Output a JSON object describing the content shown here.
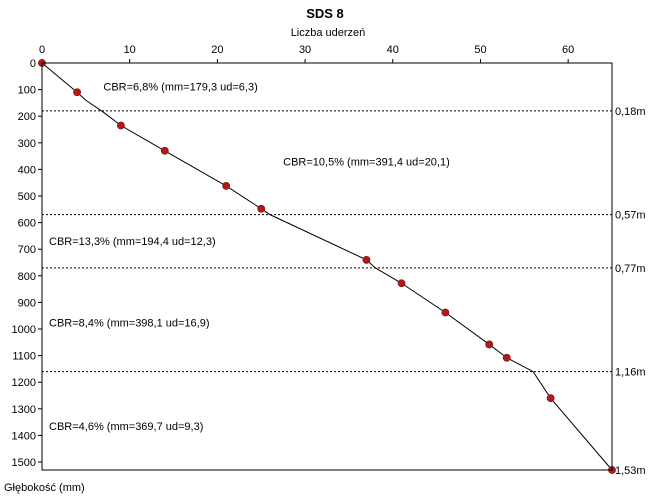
{
  "chart_data": {
    "type": "line",
    "title": "SDS 8",
    "xlabel": "Liczba uderzeń",
    "ylabel": "Głębokość (mm)",
    "x_axis_position": "top",
    "y_axis_inverted": true,
    "xlim": [
      0,
      65
    ],
    "ylim": [
      0,
      1530
    ],
    "x_ticks": [
      0,
      10,
      20,
      30,
      40,
      50,
      60
    ],
    "y_ticks": [
      0,
      100,
      200,
      300,
      400,
      500,
      600,
      700,
      800,
      900,
      1000,
      1100,
      1200,
      1300,
      1400,
      1500
    ],
    "grid": false,
    "series": [
      {
        "color": "#b11a1a",
        "line_color": "#000000",
        "points": [
          {
            "x": 0,
            "y": 0
          },
          {
            "x": 4,
            "y": 110
          },
          {
            "x": 9,
            "y": 235
          },
          {
            "x": 14,
            "y": 330
          },
          {
            "x": 21,
            "y": 462
          },
          {
            "x": 25,
            "y": 548
          },
          {
            "x": 37,
            "y": 740
          },
          {
            "x": 41,
            "y": 828
          },
          {
            "x": 46,
            "y": 938
          },
          {
            "x": 51,
            "y": 1058
          },
          {
            "x": 53,
            "y": 1108
          },
          {
            "x": 58,
            "y": 1260
          },
          {
            "x": 65,
            "y": 1530
          }
        ],
        "line_path": [
          {
            "x": 0,
            "y": 0
          },
          {
            "x": 4,
            "y": 110
          },
          {
            "x": 5,
            "y": 140
          },
          {
            "x": 7,
            "y": 185
          },
          {
            "x": 9,
            "y": 235
          },
          {
            "x": 14,
            "y": 330
          },
          {
            "x": 21,
            "y": 462
          },
          {
            "x": 25,
            "y": 548
          },
          {
            "x": 26,
            "y": 570
          },
          {
            "x": 37,
            "y": 740
          },
          {
            "x": 38,
            "y": 770
          },
          {
            "x": 41,
            "y": 828
          },
          {
            "x": 46,
            "y": 938
          },
          {
            "x": 51,
            "y": 1058
          },
          {
            "x": 53,
            "y": 1108
          },
          {
            "x": 56,
            "y": 1160
          },
          {
            "x": 58,
            "y": 1260
          },
          {
            "x": 65,
            "y": 1530
          }
        ]
      }
    ],
    "layer_boundaries": [
      {
        "depth": 180,
        "label": "0,18m"
      },
      {
        "depth": 570,
        "label": "0,57m"
      },
      {
        "depth": 770,
        "label": "0,77m"
      },
      {
        "depth": 1160,
        "label": "1,16m"
      },
      {
        "depth": 1530,
        "label": "1,53m"
      }
    ],
    "annotations": [
      {
        "text": "CBR=6,8%  (mm=179,3 ud=6,3)",
        "x": 7,
        "y": 88
      },
      {
        "text": "CBR=10,5%  (mm=391,4 ud=20,1)",
        "x": 27.5,
        "y": 370
      },
      {
        "text": "CBR=13,3%  (mm=194,4 ud=12,3)",
        "x": 0.8,
        "y": 670
      },
      {
        "text": "CBR=8,4%  (mm=398,1 ud=16,9)",
        "x": 0.8,
        "y": 975
      },
      {
        "text": "CBR=4,6%  (mm=369,7 ud=9,3)",
        "x": 0.8,
        "y": 1365
      }
    ]
  }
}
